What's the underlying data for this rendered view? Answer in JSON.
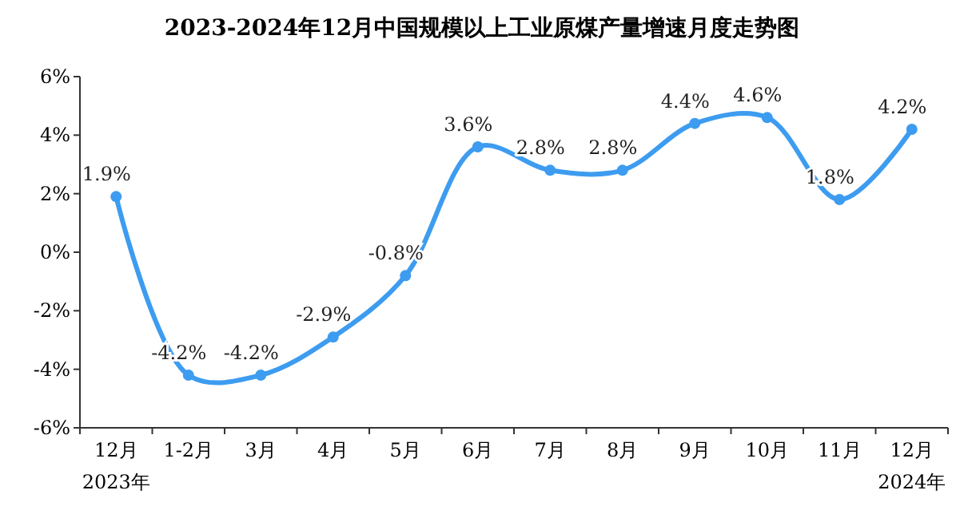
{
  "chart_data": {
    "type": "line",
    "title": "2023-2024年12月中国规模以上工业原煤产量增速月度走势图",
    "categories": [
      "12月",
      "1-2月",
      "3月",
      "4月",
      "5月",
      "6月",
      "7月",
      "8月",
      "9月",
      "10月",
      "11月",
      "12月"
    ],
    "series": [
      {
        "color": "#3d9cf0",
        "values": [
          1.9,
          -4.2,
          -4.2,
          -2.9,
          -0.8,
          3.6,
          2.8,
          2.8,
          4.4,
          4.6,
          1.8,
          4.2
        ],
        "value_labels": [
          "1.9%",
          "-4.2%",
          "-4.2%",
          "-2.9%",
          "-0.8%",
          "3.6%",
          "2.8%",
          "2.8%",
          "4.4%",
          "4.6%",
          "1.8%",
          "4.2%"
        ]
      }
    ],
    "ylim": [
      -6,
      6
    ],
    "yticks": [
      {
        "value": -6,
        "label": "-6%"
      },
      {
        "value": -4,
        "label": "-4%"
      },
      {
        "value": -2,
        "label": "-2%"
      },
      {
        "value": 0,
        "label": "0%"
      },
      {
        "value": 2,
        "label": "2%"
      },
      {
        "value": 4,
        "label": "4%"
      },
      {
        "value": 6,
        "label": "6%"
      }
    ],
    "marker": "circle",
    "grid": false,
    "annotations": [
      "2023年",
      "2024年"
    ]
  }
}
